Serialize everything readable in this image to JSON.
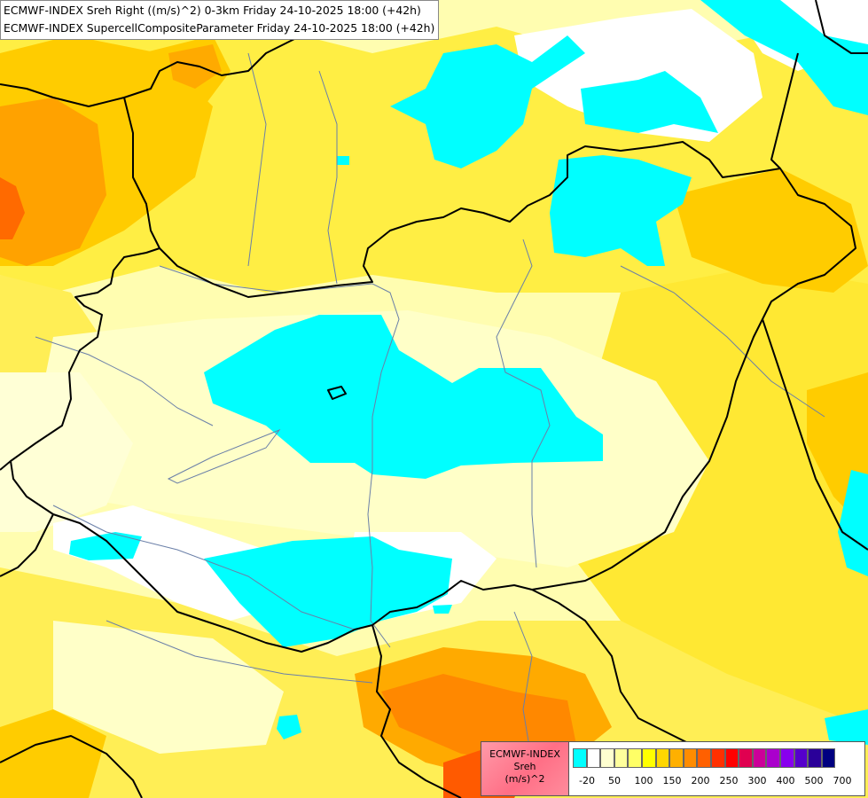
{
  "title": {
    "line1": "ECMWF-INDEX Sreh Right ((m/s)^2) 0-3km Friday 24-10-2025 18:00 (+42h)",
    "line2": "ECMWF-INDEX SupercellCompositeParameter Friday 24-10-2025 18:00 (+42h)"
  },
  "legend": {
    "label_line1": "ECMWF-INDEX",
    "label_line2": "Sreh",
    "label_line3": "(m/s)^2",
    "swatch_colors": [
      "#00ffff",
      "#ffffff",
      "#ffffd0",
      "#ffff9c",
      "#ffff66",
      "#ffff00",
      "#ffd700",
      "#ffb000",
      "#ff8c00",
      "#ff6000",
      "#ff3000",
      "#ff0000",
      "#e00050",
      "#cc0099",
      "#aa00cc",
      "#8800ee",
      "#5500cc",
      "#2a0099",
      "#000080"
    ],
    "tick_labels": [
      "-20",
      "50",
      "100",
      "150",
      "200",
      "250",
      "300",
      "400",
      "500",
      "700"
    ]
  },
  "colors": {
    "cyan": "#00ffff",
    "white": "#ffffff",
    "pale_yellow": "#ffffc0",
    "light_yellow": "#ffff88",
    "yellow": "#ffee33",
    "gold": "#ffd700",
    "orange": "#ffaa00",
    "dark_orange": "#ff7700",
    "red_orange": "#ff4500",
    "border": "#000000",
    "river": "#6a7fa8"
  }
}
